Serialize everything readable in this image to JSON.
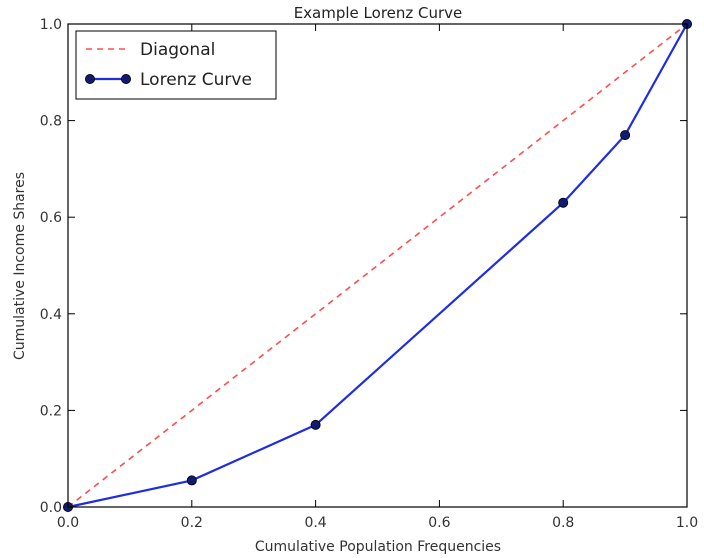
{
  "chart_data": {
    "type": "line",
    "title": "Example Lorenz Curve",
    "xlabel": "Cumulative Population Frequencies",
    "ylabel": "Cumulative Income Shares",
    "xlim": [
      0.0,
      1.0
    ],
    "ylim": [
      0.0,
      1.0
    ],
    "xticks": [
      "0.0",
      "0.2",
      "0.4",
      "0.6",
      "0.8",
      "1.0"
    ],
    "yticks": [
      "0.0",
      "0.2",
      "0.4",
      "0.6",
      "0.8",
      "1.0"
    ],
    "grid": false,
    "legend_position": "top-left",
    "series": [
      {
        "name": "Diagonal",
        "style": "dashed",
        "markers": false,
        "color": "#ff4d4d",
        "x": [
          0.0,
          1.0
        ],
        "y": [
          0.0,
          1.0
        ]
      },
      {
        "name": "Lorenz Curve",
        "style": "solid",
        "markers": true,
        "color": "#1f2de0",
        "marker_color": "#101a6e",
        "x": [
          0.0,
          0.2,
          0.4,
          0.8,
          0.9,
          1.0
        ],
        "y": [
          0.0,
          0.055,
          0.17,
          0.63,
          0.77,
          1.0
        ]
      }
    ]
  }
}
